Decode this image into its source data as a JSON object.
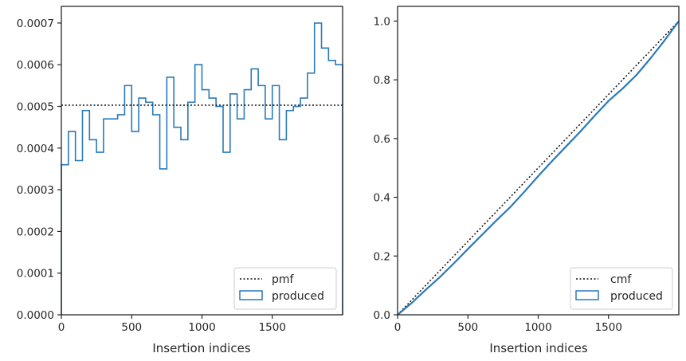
{
  "colors": {
    "produced": "#2a7ab9",
    "reference": "#111111",
    "frame": "#262626"
  },
  "chart_data": [
    {
      "type": "histogram",
      "xlabel": "Insertion indices",
      "ylabel": "",
      "xlim": [
        0,
        2000
      ],
      "ylim": [
        0,
        0.00074
      ],
      "xticks": [
        0,
        500,
        1000,
        1500
      ],
      "xtick_labels": [
        "0",
        "500",
        "1000",
        "1500"
      ],
      "yticks": [
        0,
        0.0001,
        0.0002,
        0.0003,
        0.0004,
        0.0005,
        0.0006,
        0.0007
      ],
      "ytick_labels": [
        "0.0000",
        "0.0001",
        "0.0002",
        "0.0003",
        "0.0004",
        "0.0005",
        "0.0006",
        "0.0007"
      ],
      "bin_width": 50,
      "bin_edges_start": 0,
      "values": [
        0.00036,
        0.00044,
        0.00037,
        0.00049,
        0.00042,
        0.00039,
        0.00047,
        0.00047,
        0.00048,
        0.00055,
        0.00044,
        0.00052,
        0.00051,
        0.00048,
        0.00035,
        0.00057,
        0.00045,
        0.00042,
        0.00051,
        0.0006,
        0.00054,
        0.00052,
        0.0005,
        0.00039,
        0.00053,
        0.00047,
        0.00054,
        0.00059,
        0.00055,
        0.00047,
        0.00055,
        0.00042,
        0.00049,
        0.0005,
        0.00052,
        0.00058,
        0.0007,
        0.00064,
        0.00061,
        0.0006
      ],
      "reference_value": 0.0005,
      "legend": [
        "pmf",
        "produced"
      ],
      "legend_position": "lower-right",
      "grid": false
    },
    {
      "type": "line",
      "xlabel": "Insertion indices",
      "ylabel": "",
      "xlim": [
        0,
        2000
      ],
      "ylim": [
        0,
        1.05
      ],
      "xticks": [
        0,
        500,
        1000,
        1500
      ],
      "xtick_labels": [
        "0",
        "500",
        "1000",
        "1500"
      ],
      "yticks": [
        0,
        0.2,
        0.4,
        0.6,
        0.8,
        1.0
      ],
      "ytick_labels": [
        "0.0",
        "0.2",
        "0.4",
        "0.6",
        "0.8",
        "1.0"
      ],
      "series": [
        {
          "name": "cmf",
          "x": [
            0,
            2000
          ],
          "values": [
            0,
            1.0
          ]
        },
        {
          "name": "produced",
          "x": [
            0,
            100,
            200,
            300,
            400,
            500,
            600,
            700,
            800,
            900,
            1000,
            1100,
            1200,
            1300,
            1400,
            1500,
            1600,
            1700,
            1800,
            1900,
            2000
          ],
          "values": [
            0,
            0.04,
            0.085,
            0.128,
            0.175,
            0.224,
            0.272,
            0.32,
            0.366,
            0.418,
            0.472,
            0.524,
            0.574,
            0.624,
            0.677,
            0.728,
            0.77,
            0.817,
            0.874,
            0.935,
            1.0
          ]
        }
      ],
      "legend": [
        "cmf",
        "produced"
      ],
      "legend_position": "lower-right",
      "grid": false
    }
  ]
}
